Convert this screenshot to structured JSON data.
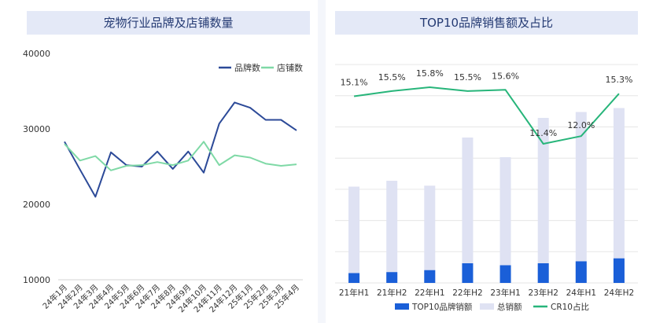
{
  "chart_data": [
    {
      "type": "line",
      "title": "宠物行业品牌及店铺数量",
      "categories": [
        "24年1月",
        "24年2月",
        "24年3月",
        "24年4月",
        "24年5月",
        "24年6月",
        "24年7月",
        "24年8月",
        "24年9月",
        "24年10月",
        "24年11月",
        "24年12月",
        "25年1月",
        "25年2月",
        "25年3月",
        "25年4月"
      ],
      "ylim": [
        10000,
        40000
      ],
      "yticks": [
        "10000",
        "20000",
        "30000",
        "40000"
      ],
      "legend_position": "top-right",
      "grid": false,
      "series": [
        {
          "name": "品牌数",
          "color": "#2c4a98",
          "values": [
            28300,
            24600,
            21000,
            26900,
            25200,
            25000,
            27000,
            24700,
            27000,
            24200,
            30700,
            33500,
            32800,
            31200,
            31200,
            29800
          ]
        },
        {
          "name": "店铺数",
          "color": "#7fd9a6",
          "values": [
            28000,
            25800,
            26400,
            24500,
            25100,
            25200,
            25600,
            25200,
            25800,
            28300,
            25200,
            26500,
            26200,
            25400,
            25100,
            25300
          ]
        }
      ]
    },
    {
      "type": "bar",
      "title": "TOP10品牌销售额及占比",
      "categories": [
        "21年H1",
        "21年H2",
        "22年H1",
        "22年H2",
        "23年H1",
        "23年H2",
        "24年H1",
        "24年H2"
      ],
      "legend_position": "bottom",
      "grid": true,
      "series": [
        {
          "name": "TOP10品牌销额",
          "color": "#1a5fd8",
          "values": [
            5,
            5.5,
            6.5,
            10,
            9,
            10,
            11,
            12.5
          ]
        },
        {
          "name": "总销额",
          "color": "#dfe2f3",
          "values": [
            49,
            52,
            49.5,
            74,
            64,
            84,
            87,
            89
          ]
        },
        {
          "name": "CR10占比",
          "color": "#27b57a",
          "values": [
            15.1,
            15.5,
            15.8,
            15.5,
            15.6,
            11.4,
            12.0,
            15.3
          ],
          "labels": [
            "15.1%",
            "15.5%",
            "15.8%",
            "15.5%",
            "15.6%",
            "11.4%",
            "12.0%",
            "15.3%"
          ]
        }
      ]
    }
  ]
}
